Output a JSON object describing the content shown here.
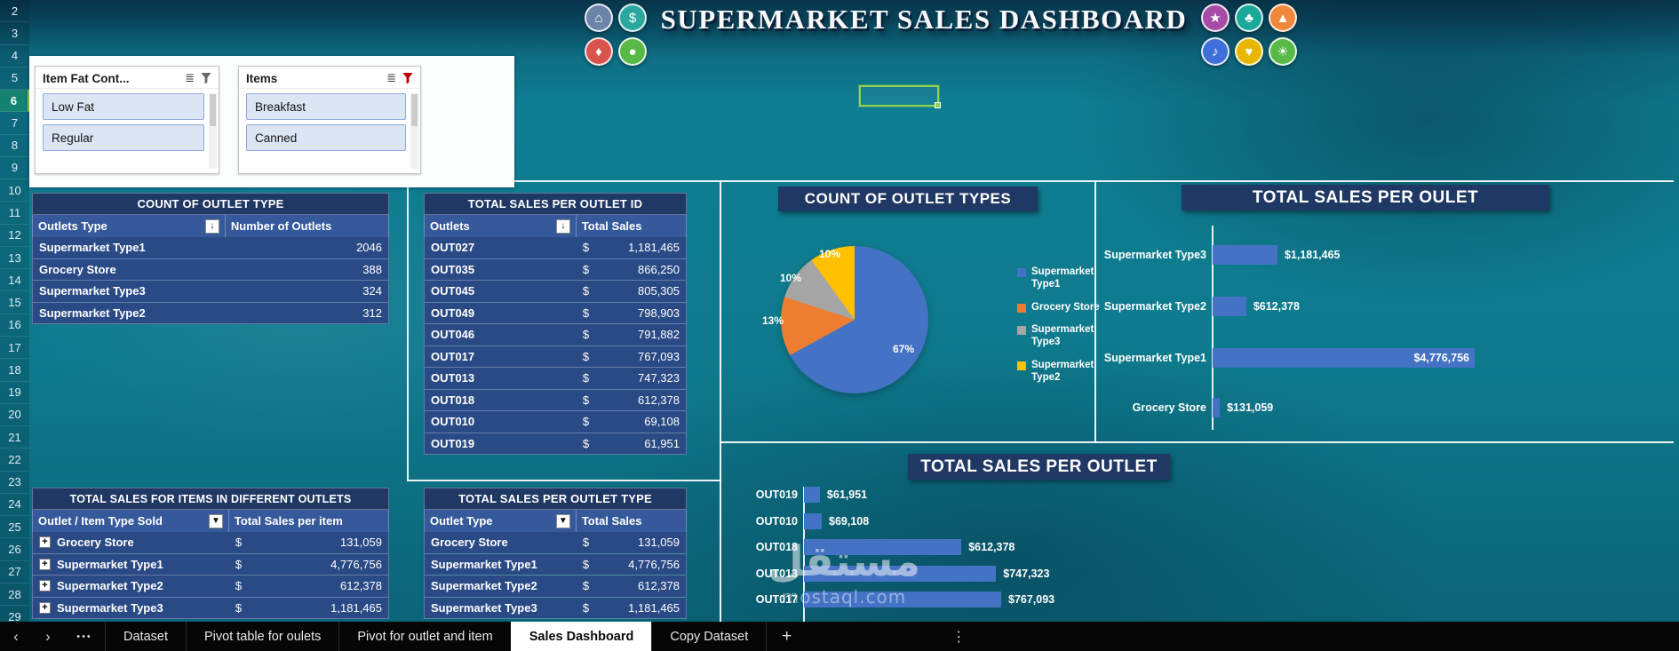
{
  "currency": "$",
  "title": "SUPERMARKET SALES DASHBOARD",
  "excel": {
    "row_numbers": [
      "2",
      "3",
      "4",
      "5",
      "6",
      "7",
      "8",
      "9",
      "10",
      "11",
      "12",
      "13",
      "14",
      "15",
      "16",
      "17",
      "18",
      "19",
      "20",
      "21",
      "22",
      "23",
      "24",
      "25",
      "26",
      "27",
      "28",
      "29",
      "30"
    ],
    "selected_row": "6"
  },
  "icons": {
    "left": [
      {
        "glyph": "⌂",
        "color": "#6b84a8"
      },
      {
        "glyph": "$",
        "color": "#2aa8a0"
      },
      {
        "glyph": "♦",
        "color": "#d9534f"
      },
      {
        "glyph": "●",
        "color": "#58b947"
      }
    ],
    "right": [
      {
        "glyph": "★",
        "color": "#a64ca6"
      },
      {
        "glyph": "♣",
        "color": "#18a999"
      },
      {
        "glyph": "▲",
        "color": "#f0883b"
      },
      {
        "glyph": "♪",
        "color": "#3f6fd8"
      },
      {
        "glyph": "♥",
        "color": "#e8b800"
      },
      {
        "glyph": "☀",
        "color": "#58b947"
      }
    ]
  },
  "slicers": [
    {
      "title": "Item Fat Cont...",
      "items": [
        "Low Fat",
        "Regular"
      ]
    },
    {
      "title": "Items",
      "items": [
        "Breakfast",
        "Canned"
      ]
    }
  ],
  "ui_glyphs": {
    "sort": "↓",
    "dropdown": "▼",
    "expand": "+",
    "multiselect": "≣",
    "nav_prev": "‹",
    "nav_next": "›",
    "more": "•••",
    "add_sheet": "+",
    "menu": "⋮"
  },
  "tables": {
    "count_of_outlet_type": {
      "title": "COUNT OF OUTLET TYPE",
      "columns": [
        "Outlets Type",
        "Number of Outlets"
      ],
      "rows": [
        [
          "Supermarket Type1",
          "2046"
        ],
        [
          "Grocery Store",
          "388"
        ],
        [
          "Supermarket Type3",
          "324"
        ],
        [
          "Supermarket Type2",
          "312"
        ]
      ]
    },
    "total_sales_per_outlet_id": {
      "title": "TOTAL SALES PER OUTLET ID",
      "columns": [
        "Outlets",
        "Total Sales"
      ],
      "rows": [
        [
          "OUT027",
          "1,181,465"
        ],
        [
          "OUT035",
          "866,250"
        ],
        [
          "OUT045",
          "805,305"
        ],
        [
          "OUT049",
          "798,903"
        ],
        [
          "OUT046",
          "791,882"
        ],
        [
          "OUT017",
          "767,093"
        ],
        [
          "OUT013",
          "747,323"
        ],
        [
          "OUT018",
          "612,378"
        ],
        [
          "OUT010",
          "69,108"
        ],
        [
          "OUT019",
          "61,951"
        ]
      ]
    },
    "total_sales_items_outlets": {
      "title": "TOTAL SALES FOR ITEMS IN DIFFERENT OUTLETS",
      "columns": [
        "Outlet / Item Type Sold",
        "Total Sales per item"
      ],
      "rows": [
        [
          "Grocery Store",
          "131,059"
        ],
        [
          "Supermarket Type1",
          "4,776,756"
        ],
        [
          "Supermarket Type2",
          "612,378"
        ],
        [
          "Supermarket Type3",
          "1,181,465"
        ]
      ]
    },
    "total_sales_per_outlet_type": {
      "title": "TOTAL SALES PER OUTLET TYPE",
      "columns": [
        "Outlet Type",
        "Total Sales"
      ],
      "rows": [
        [
          "Grocery Store",
          "131,059"
        ],
        [
          "Supermarket Type1",
          "4,776,756"
        ],
        [
          "Supermarket Type2",
          "612,378"
        ],
        [
          "Supermarket Type3",
          "1,181,465"
        ]
      ]
    }
  },
  "chart_data": [
    {
      "type": "pie",
      "title": "COUNT OF OUTLET TYPES",
      "categories": [
        "Supermarket Type1",
        "Grocery Store",
        "Supermarket Type3",
        "Supermarket Type2"
      ],
      "values": [
        67,
        13,
        10,
        10
      ],
      "value_labels": [
        "67%",
        "13%",
        "10%",
        "10%"
      ],
      "colors": [
        "#4472C4",
        "#ED7D31",
        "#A5A5A5",
        "#FFC000"
      ],
      "legend_position": "right"
    },
    {
      "type": "bar",
      "title": "TOTAL SALES PER OULET",
      "orientation": "horizontal",
      "categories": [
        "Supermarket Type3",
        "Supermarket Type2",
        "Supermarket Type1",
        "Grocery Store"
      ],
      "values": [
        1181465,
        612378,
        4776756,
        131059
      ],
      "value_labels": [
        "$1,181,465",
        "$612,378",
        "$4,776,756",
        "$131,059"
      ],
      "bar_color": "#4472C4",
      "xlim": [
        0,
        4776756
      ]
    },
    {
      "type": "bar",
      "title": "TOTAL SALES PER OUTLET",
      "orientation": "horizontal",
      "categories": [
        "OUT019",
        "OUT010",
        "OUT018",
        "OUT013",
        "OUT017"
      ],
      "values": [
        61951,
        69108,
        612378,
        747323,
        767093
      ],
      "value_labels": [
        "$61,951",
        "$69,108",
        "$612,378",
        "$747,323",
        "$767,093"
      ],
      "bar_color": "#4472C4",
      "xlim": [
        0,
        767093
      ]
    }
  ],
  "sheet_tabs": [
    "Dataset",
    "Pivot table for oulets",
    "Pivot for outlet and item",
    "Sales Dashboard",
    "Copy Dataset"
  ],
  "active_tab": "Sales Dashboard",
  "watermark": {
    "line1": "مستقل",
    "line2": "mostaql.com"
  }
}
